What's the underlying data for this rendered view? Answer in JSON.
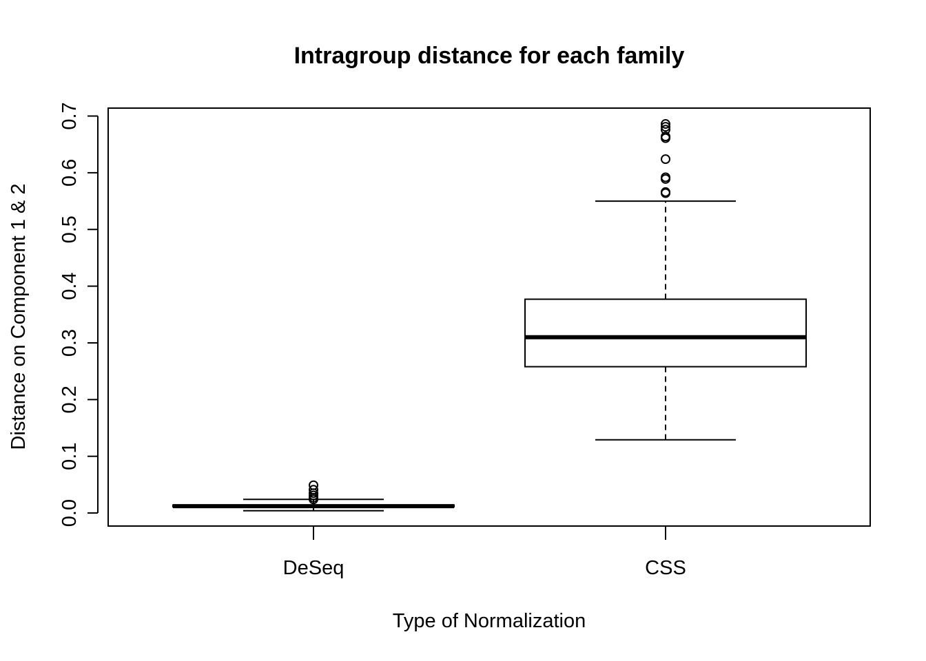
{
  "chart_data": {
    "type": "boxplot",
    "title": "Intragroup distance for each family",
    "xlabel": "Type of Normalization",
    "ylabel": "Distance on Component 1 & 2",
    "ylim": [
      -0.023,
      0.714
    ],
    "yticks": [
      "0.0",
      "0.1",
      "0.2",
      "0.3",
      "0.4",
      "0.5",
      "0.6",
      "0.7"
    ],
    "grid": false,
    "categories": [
      "DeSeq",
      "CSS"
    ],
    "boxes": [
      {
        "label": "DeSeq",
        "whisker_low": 0.004,
        "q1": 0.011,
        "median": 0.012,
        "q3": 0.014,
        "whisker_high": 0.024,
        "outliers": [
          0.049,
          0.041,
          0.035,
          0.031,
          0.027,
          0.024
        ]
      },
      {
        "label": "CSS",
        "whisker_low": 0.129,
        "q1": 0.258,
        "median": 0.31,
        "q3": 0.377,
        "whisker_high": 0.55,
        "outliers": [
          0.686,
          0.681,
          0.676,
          0.664,
          0.661,
          0.624,
          0.592,
          0.589,
          0.566,
          0.564
        ]
      }
    ],
    "colors": {
      "stroke": "#000000",
      "background": "#ffffff"
    }
  }
}
